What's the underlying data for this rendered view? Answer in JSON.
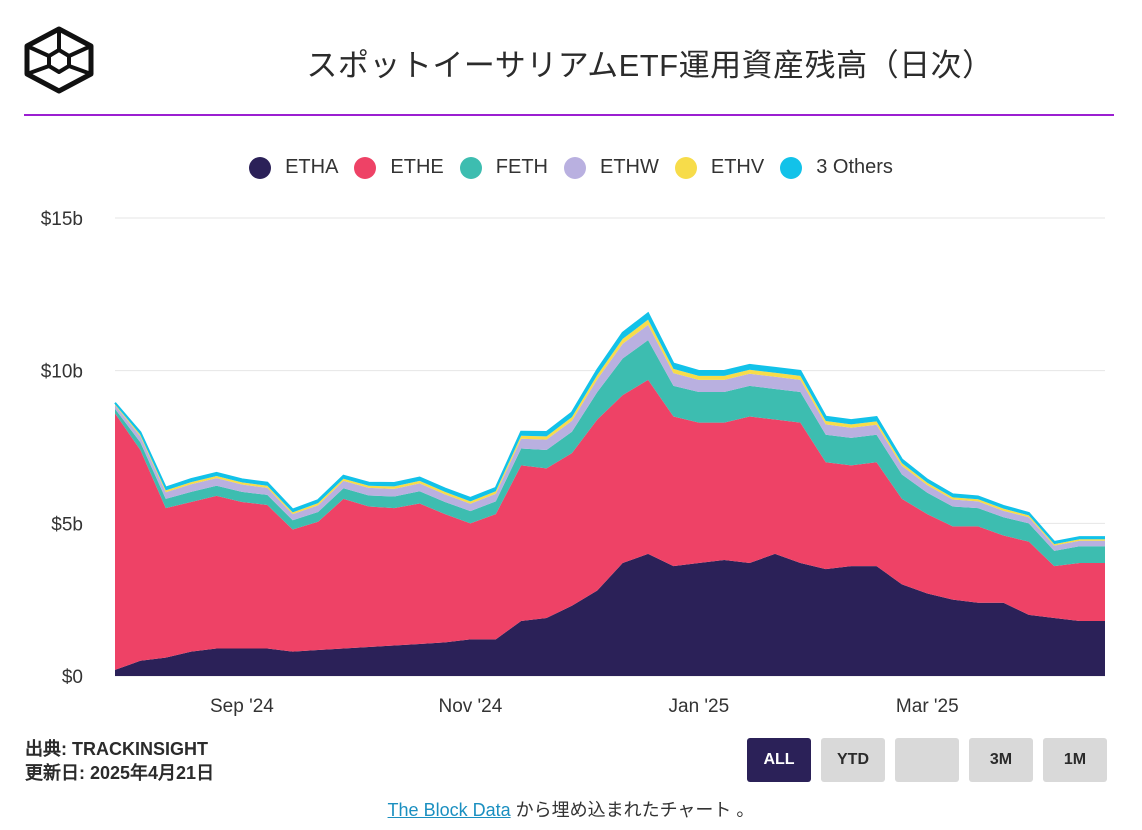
{
  "header": {
    "title": "スポットイーサリアムETF運用資産残高（日次）"
  },
  "legend": [
    {
      "label": "ETHA",
      "color": "#2b2158"
    },
    {
      "label": "ETHE",
      "color": "#ee4266"
    },
    {
      "label": "FETH",
      "color": "#3dbdb0"
    },
    {
      "label": "ETHW",
      "color": "#b9b0e0"
    },
    {
      "label": "ETHV",
      "color": "#f7dc4a"
    },
    {
      "label": "3 Others",
      "color": "#12c2e9"
    }
  ],
  "footer": {
    "source": "出典: TRACKINSIGHT",
    "updated": "更新日: 2025年4月21日",
    "link_text": "The Block Data",
    "suffix": " から埋め込まれたチャート 。"
  },
  "range_buttons": [
    {
      "label": "ALL",
      "active": true
    },
    {
      "label": "YTD",
      "active": false
    },
    {
      "label": "",
      "active": false
    },
    {
      "label": "3M",
      "active": false
    },
    {
      "label": "1M",
      "active": false
    }
  ],
  "chart_data": {
    "type": "area",
    "stacked": true,
    "title": "スポットイーサリアムETF運用資産残高（日次）",
    "ylabel": "",
    "xlabel": "",
    "ylim": [
      0,
      15
    ],
    "yticks": [
      0,
      5,
      10,
      15
    ],
    "ytick_labels": [
      "$0",
      "$5b",
      "$10b",
      "$15b"
    ],
    "xticks": [
      {
        "label": "Sep '24",
        "index": 5
      },
      {
        "label": "Nov '24",
        "index": 14
      },
      {
        "label": "Jan '25",
        "index": 23
      },
      {
        "label": "Mar '25",
        "index": 32
      }
    ],
    "x": [
      "2024-07-23",
      "2024-08-01",
      "2024-08-08",
      "2024-08-15",
      "2024-08-22",
      "2024-08-29",
      "2024-09-05",
      "2024-09-12",
      "2024-09-19",
      "2024-09-26",
      "2024-10-03",
      "2024-10-10",
      "2024-10-17",
      "2024-10-24",
      "2024-10-31",
      "2024-11-07",
      "2024-11-14",
      "2024-11-21",
      "2024-11-28",
      "2024-12-05",
      "2024-12-12",
      "2024-12-19",
      "2024-12-26",
      "2025-01-02",
      "2025-01-09",
      "2025-01-16",
      "2025-01-23",
      "2025-01-30",
      "2025-02-06",
      "2025-02-13",
      "2025-02-20",
      "2025-02-27",
      "2025-03-06",
      "2025-03-13",
      "2025-03-20",
      "2025-03-27",
      "2025-04-03",
      "2025-04-10",
      "2025-04-17",
      "2025-04-21"
    ],
    "series": [
      {
        "name": "ETHA",
        "values": [
          0.2,
          0.5,
          0.6,
          0.8,
          0.9,
          0.9,
          0.9,
          0.8,
          0.85,
          0.9,
          0.95,
          1.0,
          1.05,
          1.1,
          1.2,
          1.2,
          1.8,
          1.9,
          2.3,
          2.8,
          3.7,
          4.0,
          3.6,
          3.7,
          3.8,
          3.7,
          4.0,
          3.7,
          3.5,
          3.6,
          3.6,
          3.0,
          2.7,
          2.5,
          2.4,
          2.4,
          2.0,
          1.9,
          1.8,
          1.8
        ]
      },
      {
        "name": "ETHE",
        "values": [
          8.4,
          6.9,
          4.9,
          4.9,
          5.0,
          4.8,
          4.7,
          4.0,
          4.2,
          4.9,
          4.6,
          4.5,
          4.6,
          4.2,
          3.8,
          4.1,
          5.1,
          4.9,
          5.0,
          5.6,
          5.5,
          5.7,
          4.9,
          4.6,
          4.5,
          4.8,
          4.4,
          4.6,
          3.5,
          3.3,
          3.4,
          2.8,
          2.6,
          2.4,
          2.5,
          2.2,
          2.4,
          1.7,
          1.9,
          1.9
        ]
      },
      {
        "name": "FETH",
        "values": [
          0.15,
          0.25,
          0.3,
          0.33,
          0.33,
          0.33,
          0.33,
          0.3,
          0.32,
          0.35,
          0.36,
          0.38,
          0.4,
          0.4,
          0.4,
          0.42,
          0.55,
          0.6,
          0.7,
          0.9,
          1.2,
          1.3,
          1.0,
          1.0,
          1.0,
          1.0,
          1.0,
          1.0,
          0.9,
          0.9,
          0.9,
          0.8,
          0.7,
          0.65,
          0.6,
          0.6,
          0.6,
          0.5,
          0.55,
          0.55
        ]
      },
      {
        "name": "ETHW",
        "values": [
          0.12,
          0.2,
          0.22,
          0.25,
          0.25,
          0.24,
          0.23,
          0.2,
          0.22,
          0.24,
          0.25,
          0.25,
          0.26,
          0.25,
          0.24,
          0.25,
          0.32,
          0.34,
          0.36,
          0.42,
          0.48,
          0.5,
          0.42,
          0.4,
          0.4,
          0.4,
          0.4,
          0.4,
          0.34,
          0.33,
          0.33,
          0.28,
          0.25,
          0.23,
          0.22,
          0.21,
          0.2,
          0.17,
          0.18,
          0.18
        ]
      },
      {
        "name": "ETHV",
        "values": [
          0.03,
          0.05,
          0.06,
          0.07,
          0.07,
          0.07,
          0.07,
          0.06,
          0.07,
          0.07,
          0.07,
          0.08,
          0.08,
          0.08,
          0.08,
          0.08,
          0.1,
          0.11,
          0.12,
          0.14,
          0.16,
          0.17,
          0.14,
          0.13,
          0.13,
          0.13,
          0.13,
          0.13,
          0.11,
          0.11,
          0.11,
          0.09,
          0.08,
          0.07,
          0.07,
          0.07,
          0.06,
          0.05,
          0.05,
          0.05
        ]
      },
      {
        "name": "3 Others",
        "values": [
          0.05,
          0.08,
          0.09,
          0.1,
          0.1,
          0.1,
          0.1,
          0.09,
          0.1,
          0.1,
          0.1,
          0.11,
          0.11,
          0.11,
          0.11,
          0.11,
          0.13,
          0.14,
          0.15,
          0.17,
          0.2,
          0.21,
          0.17,
          0.16,
          0.16,
          0.16,
          0.16,
          0.16,
          0.14,
          0.14,
          0.14,
          0.12,
          0.1,
          0.1,
          0.09,
          0.09,
          0.08,
          0.07,
          0.07,
          0.07
        ]
      }
    ]
  }
}
